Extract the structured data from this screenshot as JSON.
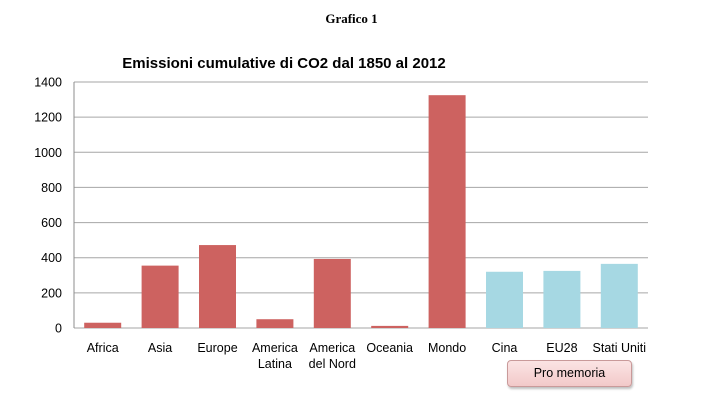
{
  "page": {
    "heading": "Grafico 1"
  },
  "memo_box": {
    "label": "Pro memoria"
  },
  "colors": {
    "primary_bar": "#cd6260",
    "memo_bar": "#a6d8e3",
    "gridline": "#a6a6a6"
  },
  "chart_data": {
    "type": "bar",
    "title": "Emissioni cumulative di CO2 dal 1850 al 2012",
    "xlabel": "",
    "ylabel": "",
    "ylim": [
      0,
      1400
    ],
    "yticks": [
      0,
      200,
      400,
      600,
      800,
      1000,
      1200,
      1400
    ],
    "grid": true,
    "legend": "none",
    "categories": [
      [
        "Africa"
      ],
      [
        "Asia"
      ],
      [
        "Europe"
      ],
      [
        "America",
        "Latina"
      ],
      [
        "America",
        "del Nord"
      ],
      [
        "Oceania"
      ],
      [
        "Mondo"
      ],
      [
        "Cina"
      ],
      [
        "EU28"
      ],
      [
        "Stati Uniti"
      ]
    ],
    "values": [
      30,
      355,
      472,
      50,
      393,
      12,
      1325,
      320,
      325,
      365
    ],
    "bar_colors": [
      "#cd6260",
      "#cd6260",
      "#cd6260",
      "#cd6260",
      "#cd6260",
      "#cd6260",
      "#cd6260",
      "#a6d8e3",
      "#a6d8e3",
      "#a6d8e3"
    ]
  }
}
